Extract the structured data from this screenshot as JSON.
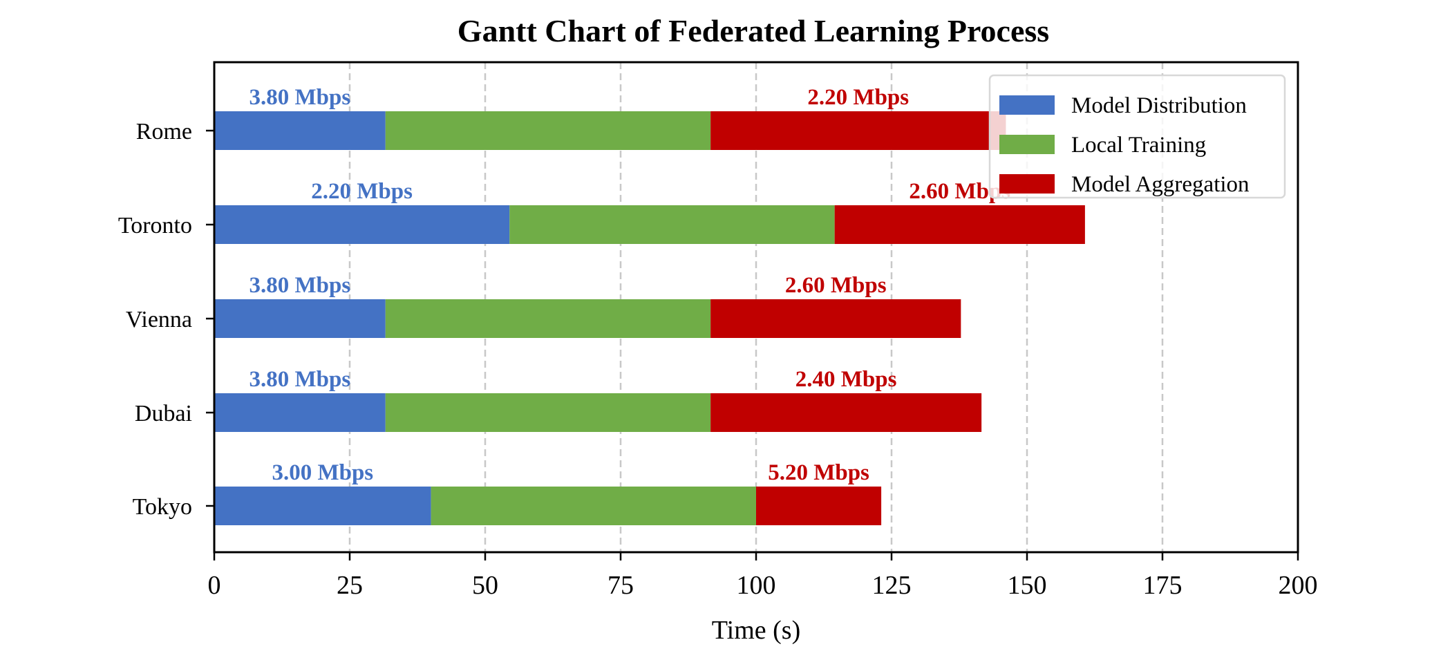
{
  "chart_data": {
    "type": "bar",
    "orientation": "horizontal-stacked",
    "title": "Gantt Chart of Federated Learning Process",
    "xlabel": "Time (s)",
    "ylabel": "",
    "xlim": [
      0,
      200
    ],
    "xticks": [
      0,
      25,
      50,
      75,
      100,
      125,
      150,
      175,
      200
    ],
    "grid": "vertical-dashed",
    "legend_position": "top-right",
    "categories": [
      "Rome",
      "Toronto",
      "Vienna",
      "Dubai",
      "Tokyo"
    ],
    "series": [
      {
        "name": "Model Distribution",
        "color": "#4472c4",
        "values": [
          31.6,
          54.5,
          31.6,
          31.6,
          40.0
        ],
        "labels": [
          "3.80 Mbps",
          "2.20 Mbps",
          "3.80 Mbps",
          "3.80 Mbps",
          "3.00 Mbps"
        ]
      },
      {
        "name": "Local Training",
        "color": "#70ad47",
        "values": [
          60.0,
          60.0,
          60.0,
          60.0,
          60.0
        ]
      },
      {
        "name": "Model Aggregation",
        "color": "#c00000",
        "values": [
          54.5,
          46.2,
          46.2,
          50.0,
          23.1
        ],
        "labels": [
          "2.20 Mbps",
          "2.60 Mbps",
          "2.60 Mbps",
          "2.40 Mbps",
          "5.20 Mbps"
        ]
      }
    ]
  }
}
